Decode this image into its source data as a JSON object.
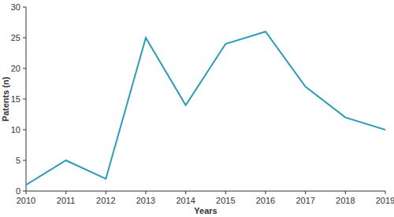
{
  "chart_data": {
    "type": "line",
    "x_label": "Years",
    "y_label": "Patents (n)",
    "x": [
      2010,
      2011,
      2012,
      2013,
      2014,
      2015,
      2016,
      2017,
      2018,
      2019
    ],
    "values": [
      1,
      5,
      2,
      25,
      14,
      24,
      26,
      17,
      12,
      10
    ],
    "color": "#2b9cb6",
    "xlim": [
      2010,
      2019
    ],
    "xticks": [
      2010,
      2011,
      2012,
      2013,
      2014,
      2015,
      2016,
      2017,
      2018,
      2019
    ],
    "ylim": [
      0,
      30
    ],
    "yticks": [
      0,
      5,
      10,
      15,
      20,
      25,
      30
    ],
    "grid": false
  }
}
